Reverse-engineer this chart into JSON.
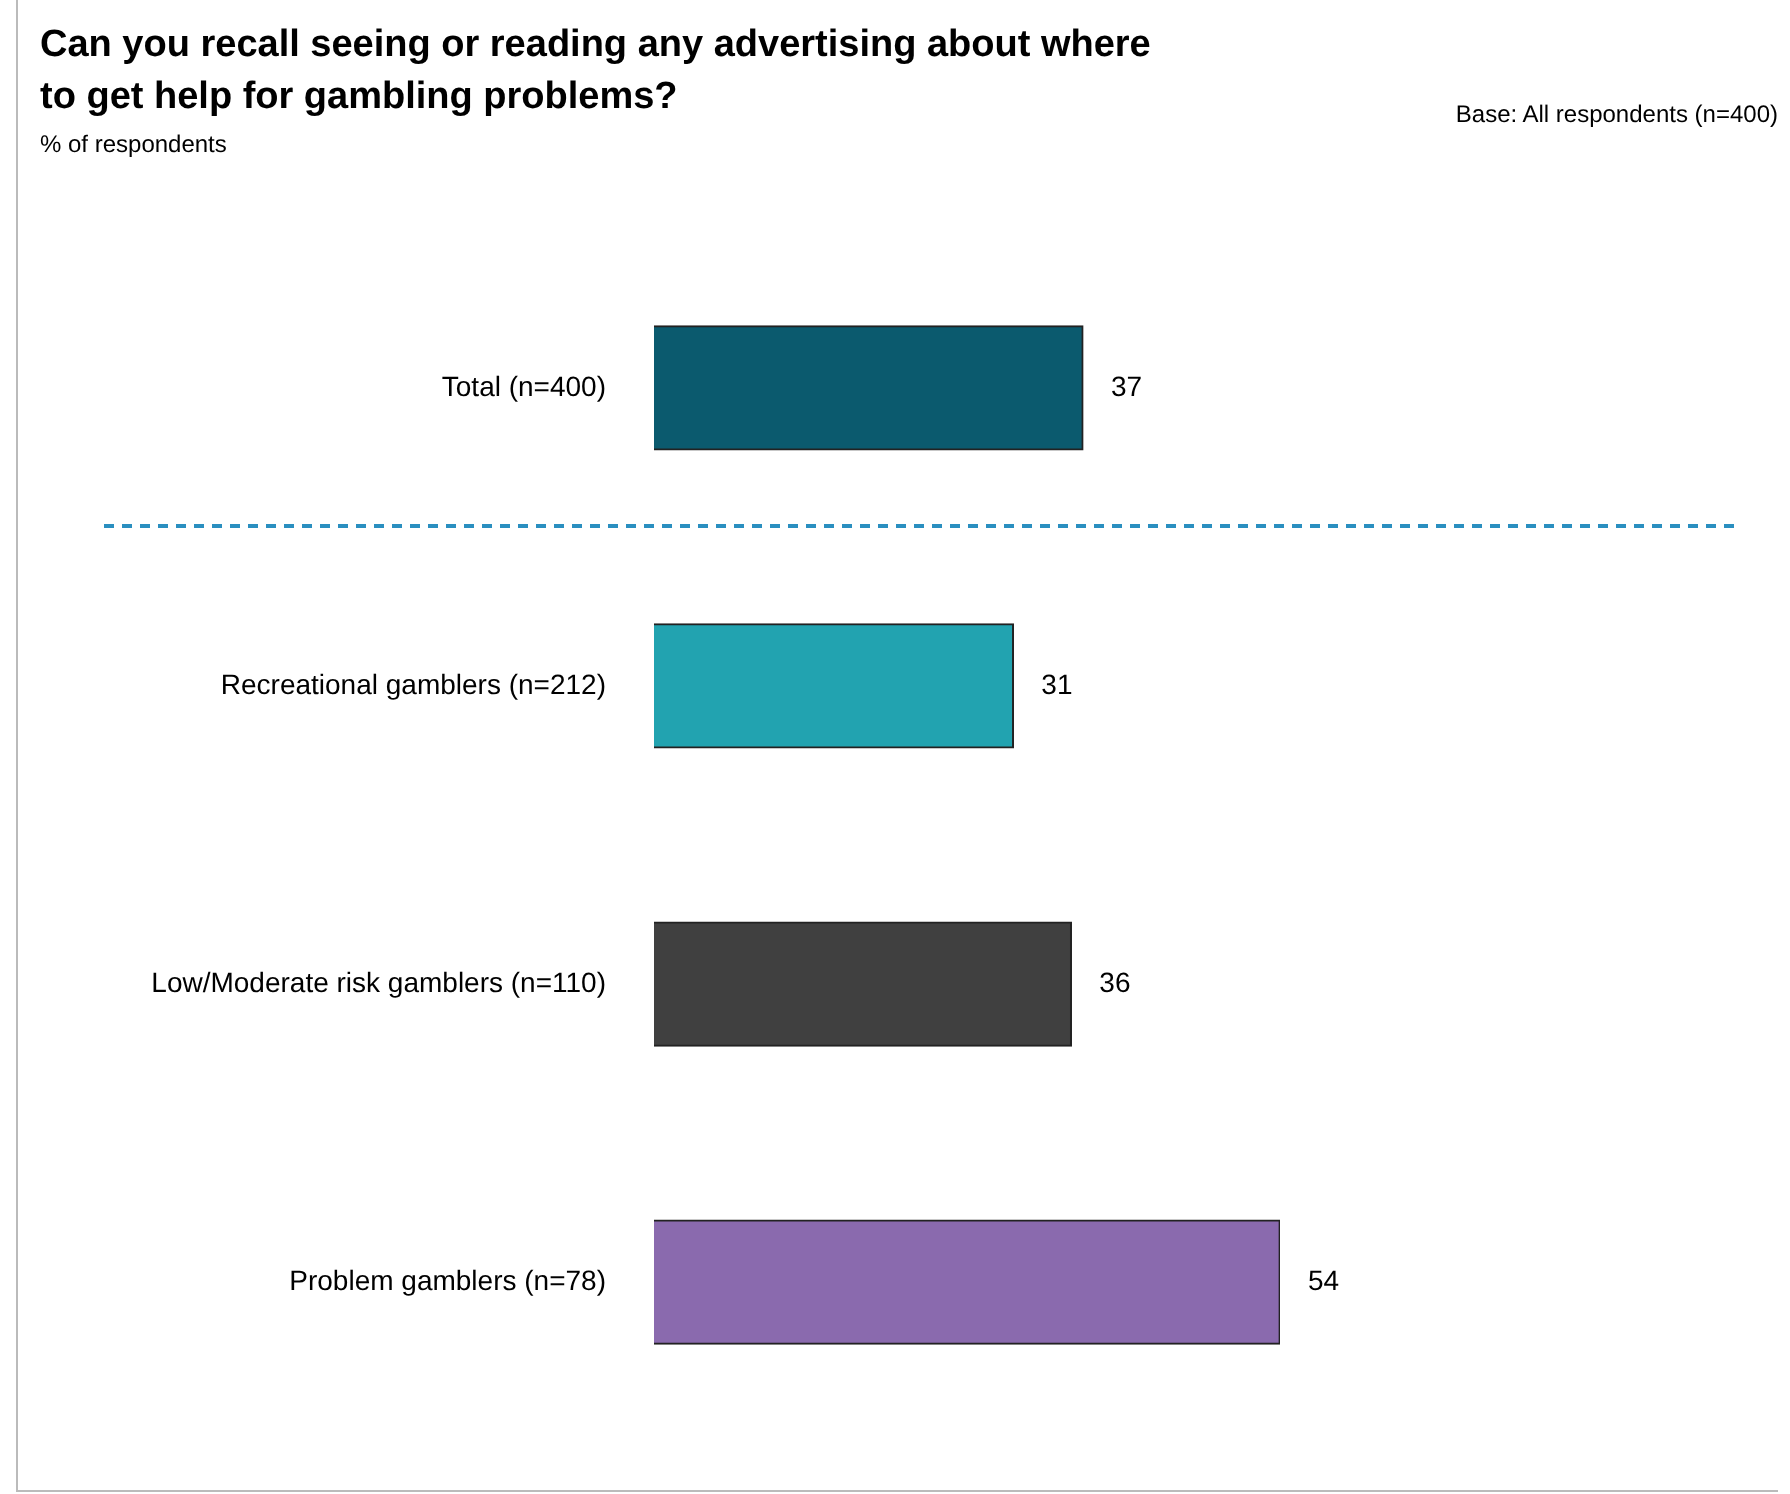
{
  "chart_data": {
    "type": "bar",
    "orientation": "horizontal",
    "title": "Can you recall seeing or reading any advertising about where to get help for gambling problems?",
    "annotations": [
      "% of respondents",
      "Base: All respondents (n=400)"
    ],
    "categories": [
      "Total (n=400)",
      "Recreational gamblers (n=212)",
      "Low/Moderate risk gamblers (n=110)",
      "Problem gamblers (n=78)"
    ],
    "values": [
      37,
      31,
      36,
      54
    ],
    "colors": [
      "#0b5a6e",
      "#22a3b0",
      "#404040",
      "#8a6aae"
    ],
    "data_labels": true
  }
}
